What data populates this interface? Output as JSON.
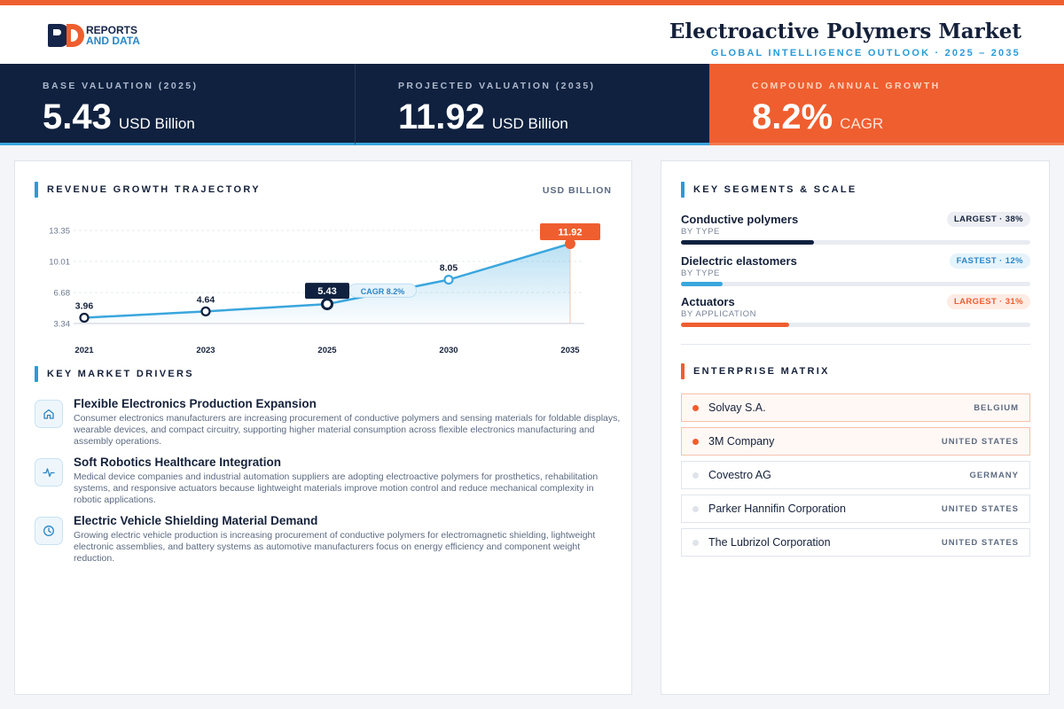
{
  "header": {
    "logo_line1": "REPORTS",
    "logo_line2": "AND DATA",
    "title": "Electroactive Polymers Market",
    "subtitle": "GLOBAL INTELLIGENCE OUTLOOK  ·  2025 – 2035"
  },
  "kpis": [
    {
      "label": "BASE VALUATION (2025)",
      "value": "5.43",
      "unit": "USD Billion"
    },
    {
      "label": "PROJECTED VALUATION (2035)",
      "value": "11.92",
      "unit": "USD Billion"
    },
    {
      "label": "COMPOUND ANNUAL GROWTH",
      "value": "8.2%",
      "unit": "CAGR"
    }
  ],
  "chart_section": {
    "title": "REVENUE GROWTH TRAJECTORY",
    "unit": "USD BILLION"
  },
  "chart_data": {
    "type": "area",
    "x": [
      "2021",
      "2023",
      "2025",
      "2030",
      "2035"
    ],
    "values": [
      3.96,
      4.64,
      5.43,
      8.05,
      11.92
    ],
    "data_labels": [
      "3.96",
      "4.64",
      "5.43",
      "8.05",
      "11.92"
    ],
    "yticks": [
      "13.35",
      "10.01",
      "6.68",
      "3.34"
    ],
    "ytick_values": [
      13.35,
      10.01,
      6.68,
      3.34
    ],
    "ylim": [
      3.34,
      13.35
    ],
    "annotation": "CAGR 8.2%",
    "grid": true,
    "colors": {
      "line": "#3aa6dd",
      "highlight": "#0f213f",
      "final": "#ef5e2f"
    }
  },
  "drivers_section": {
    "title": "KEY MARKET DRIVERS"
  },
  "drivers": [
    {
      "icon": "home-icon",
      "title": "Flexible Electronics Production Expansion",
      "desc": "Consumer electronics manufacturers are increasing procurement of conductive polymers and sensing materials for foldable displays, wearable devices, and compact circuitry, supporting higher material consumption across flexible electronics manufacturing and assembly operations."
    },
    {
      "icon": "pulse-icon",
      "title": "Soft Robotics Healthcare Integration",
      "desc": "Medical device companies and industrial automation suppliers are adopting electroactive polymers for prosthetics, rehabilitation systems, and responsive actuators because lightweight materials improve motion control and reduce mechanical complexity in robotic applications."
    },
    {
      "icon": "clock-icon",
      "title": "Electric Vehicle Shielding Material Demand",
      "desc": "Growing electric vehicle production is increasing procurement of conductive polymers for electromagnetic shielding, lightweight electronic assemblies, and battery systems as automotive manufacturers focus on energy efficiency and component weight reduction."
    }
  ],
  "segments_section": {
    "title": "KEY SEGMENTS & SCALE"
  },
  "segments": [
    {
      "name": "Conductive polymers",
      "type": "BY TYPE",
      "badge": "LARGEST · 38%",
      "share": 38,
      "color": "#0f213f",
      "badge_bg": "#eceef3",
      "badge_fg": "#15213a"
    },
    {
      "name": "Dielectric elastomers",
      "type": "BY TYPE",
      "badge": "FASTEST · 12%",
      "share": 12,
      "color": "#3aa6dd",
      "badge_bg": "#e6f3fb",
      "badge_fg": "#2b86c5"
    },
    {
      "name": "Actuators",
      "type": "BY APPLICATION",
      "badge": "LARGEST · 31%",
      "share": 31,
      "color": "#ef5e2f",
      "badge_bg": "#fdece4",
      "badge_fg": "#ef5e2f"
    }
  ],
  "enterprise_section": {
    "title": "ENTERPRISE MATRIX"
  },
  "enterprises": [
    {
      "name": "Solvay S.A.",
      "country": "BELGIUM",
      "highlight": true
    },
    {
      "name": "3M Company",
      "country": "UNITED STATES",
      "highlight": true
    },
    {
      "name": "Covestro AG",
      "country": "GERMANY",
      "highlight": false
    },
    {
      "name": "Parker Hannifin Corporation",
      "country": "UNITED STATES",
      "highlight": false
    },
    {
      "name": "The Lubrizol Corporation",
      "country": "UNITED STATES",
      "highlight": false
    }
  ]
}
